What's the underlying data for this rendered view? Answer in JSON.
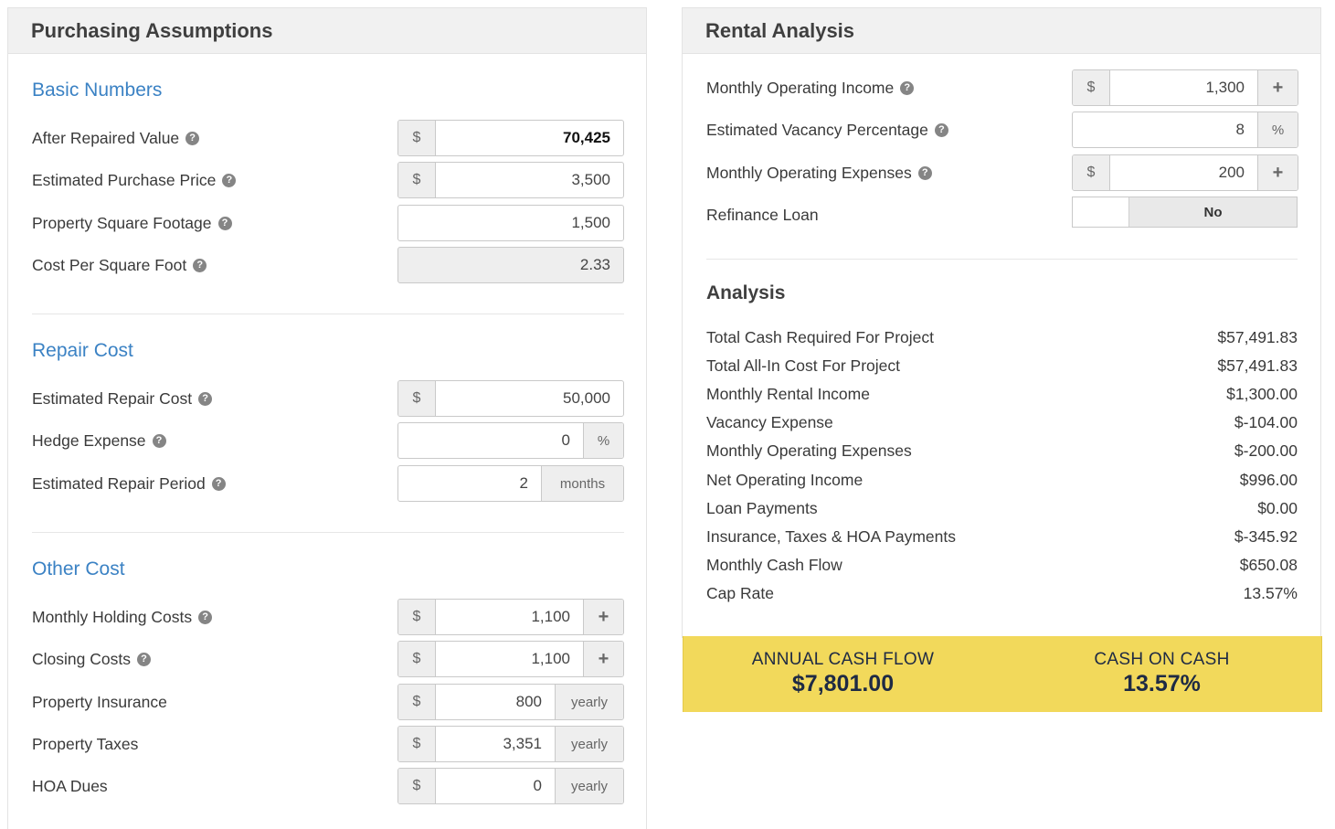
{
  "left_panel": {
    "title": "Purchasing Assumptions",
    "basic": {
      "title": "Basic Numbers",
      "after_repaired_value": {
        "label": "After Repaired Value",
        "prefix": "$",
        "value": "70,425"
      },
      "purchase_price": {
        "label": "Estimated Purchase Price",
        "prefix": "$",
        "value": "3,500"
      },
      "square_footage": {
        "label": "Property Square Footage",
        "value": "1,500"
      },
      "cost_per_sqft": {
        "label": "Cost Per Square Foot",
        "value": "2.33"
      }
    },
    "repair": {
      "title": "Repair Cost",
      "repair_cost": {
        "label": "Estimated Repair Cost",
        "prefix": "$",
        "value": "50,000"
      },
      "hedge_expense": {
        "label": "Hedge Expense",
        "value": "0",
        "suffix": "%"
      },
      "repair_period": {
        "label": "Estimated Repair Period",
        "value": "2",
        "suffix": "months"
      }
    },
    "other": {
      "title": "Other Cost",
      "holding_costs": {
        "label": "Monthly Holding Costs",
        "prefix": "$",
        "value": "1,100",
        "suffix": "+"
      },
      "closing_costs": {
        "label": "Closing Costs",
        "prefix": "$",
        "value": "1,100",
        "suffix": "+"
      },
      "insurance": {
        "label": "Property Insurance",
        "prefix": "$",
        "value": "800",
        "suffix": "yearly"
      },
      "taxes": {
        "label": "Property Taxes",
        "prefix": "$",
        "value": "3,351",
        "suffix": "yearly"
      },
      "hoa": {
        "label": "HOA Dues",
        "prefix": "$",
        "value": "0",
        "suffix": "yearly"
      }
    }
  },
  "right_panel": {
    "title": "Rental Analysis",
    "operating_income": {
      "label": "Monthly Operating Income",
      "prefix": "$",
      "value": "1,300",
      "suffix": "+"
    },
    "vacancy": {
      "label": "Estimated Vacancy Percentage",
      "value": "8",
      "suffix": "%"
    },
    "operating_expenses": {
      "label": "Monthly Operating Expenses",
      "prefix": "$",
      "value": "200",
      "suffix": "+"
    },
    "refinance": {
      "label": "Refinance Loan",
      "value": "No"
    },
    "analysis": {
      "title": "Analysis",
      "rows": [
        {
          "label": "Total Cash Required For Project",
          "value": "$57,491.83"
        },
        {
          "label": "Total All-In Cost For Project",
          "value": "$57,491.83"
        },
        {
          "label": "Monthly Rental Income",
          "value": "$1,300.00"
        },
        {
          "label": "Vacancy Expense",
          "value": "$-104.00"
        },
        {
          "label": "Monthly Operating Expenses",
          "value": "$-200.00"
        },
        {
          "label": "Net Operating Income",
          "value": "$996.00"
        },
        {
          "label": "Loan Payments",
          "value": "$0.00"
        },
        {
          "label": "Insurance, Taxes & HOA Payments",
          "value": "$-345.92"
        },
        {
          "label": "Monthly Cash Flow",
          "value": "$650.08"
        },
        {
          "label": "Cap Rate",
          "value": "13.57%"
        }
      ]
    },
    "summary": {
      "annual_label": "ANNUAL CASH FLOW",
      "annual_value": "$7,801.00",
      "coc_label": "CASH ON CASH",
      "coc_value": "13.57%"
    }
  },
  "help_icon_glyph": "?"
}
